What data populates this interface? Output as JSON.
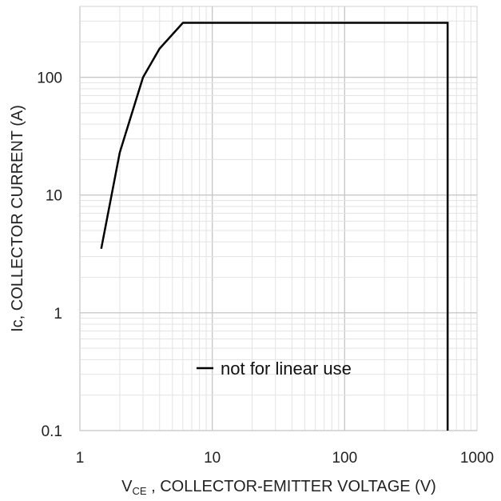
{
  "chart_data": {
    "type": "line",
    "x_scale": "log",
    "y_scale": "log",
    "xlim": [
      1,
      1000
    ],
    "ylim": [
      0.1,
      400
    ],
    "grid": true,
    "legend_position": "bottom-center",
    "x_ticks": [
      "1",
      "10",
      "100",
      "1000"
    ],
    "y_ticks": [
      "0.1",
      "1",
      "10",
      "100"
    ],
    "xlabel_main": "V",
    "xlabel_sub": "CE",
    "xlabel_rest": " , COLLECTOR-EMITTER VOLTAGE (V)",
    "ylabel": "Ic, COLLECTOR CURRENT (A)",
    "series": [
      {
        "name": "not for linear use",
        "color": "#000000",
        "x": [
          1.45,
          2.0,
          3.0,
          4.0,
          6.0,
          600,
          600
        ],
        "y": [
          3.5,
          23,
          100,
          175,
          290,
          290,
          0.1
        ]
      }
    ]
  }
}
